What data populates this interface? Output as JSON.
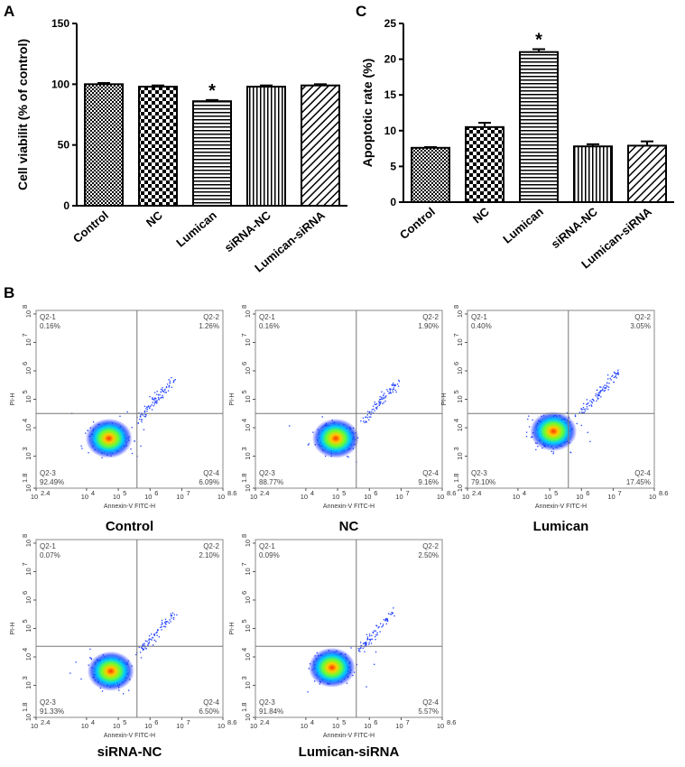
{
  "panels": {
    "a": "A",
    "b": "B",
    "c": "C"
  },
  "chart_data": [
    {
      "id": "A",
      "type": "bar",
      "categories": [
        "Control",
        "NC",
        "Lumican",
        "siRNA-NC",
        "Lumican-siRNA"
      ],
      "values": [
        100,
        98,
        86,
        98,
        99
      ],
      "errors": [
        1,
        1,
        1,
        1,
        1
      ],
      "significant": [
        "",
        "",
        "*",
        "",
        ""
      ],
      "ylabel": "Cell viabilit (% of control)",
      "ylim": [
        0,
        150
      ],
      "yticks": [
        "0",
        "50",
        "100",
        "150"
      ],
      "patterns": [
        "dots",
        "checker",
        "hlines",
        "vlines",
        "diagonal"
      ]
    },
    {
      "id": "C",
      "type": "bar",
      "categories": [
        "Control",
        "NC",
        "Lumican",
        "siRNA-NC",
        "Lumican-siRNA"
      ],
      "values": [
        7.6,
        10.5,
        21.0,
        7.8,
        7.9
      ],
      "errors": [
        0.1,
        0.6,
        0.4,
        0.3,
        0.6
      ],
      "significant": [
        "",
        "",
        "*",
        "",
        ""
      ],
      "ylabel": "Apoptotic rate (%)",
      "ylim": [
        0,
        25
      ],
      "yticks": [
        "0",
        "5",
        "10",
        "15",
        "20",
        "25"
      ],
      "patterns": [
        "dots",
        "checker",
        "hlines",
        "vlines",
        "diagonal"
      ]
    },
    {
      "id": "B",
      "type": "scatter",
      "xlabel": "Annexin-V FITC-H",
      "ylabel": "PI-H",
      "xticks": [
        "10",
        "10",
        "10",
        "10",
        "10",
        "10"
      ],
      "xexp": [
        "2.4",
        "4",
        "5",
        "6",
        "7",
        "8.6"
      ],
      "yticks": [
        "10",
        "10",
        "10",
        "10",
        "10",
        "10",
        "10"
      ],
      "yexp": [
        "1.8",
        "3",
        "4",
        "5",
        "6",
        "7",
        "8"
      ],
      "plots": [
        {
          "title": "Control",
          "q1": "0.16%",
          "q2": "1.26%",
          "q3": "92.49%",
          "q4": "6.09%"
        },
        {
          "title": "NC",
          "q1": "0.16%",
          "q2": "1.90%",
          "q3": "88.77%",
          "q4": "9.16%"
        },
        {
          "title": "Lumican",
          "q1": "0.40%",
          "q2": "3.05%",
          "q3": "79.10%",
          "q4": "17.45%"
        },
        {
          "title": "siRNA-NC",
          "q1": "0.07%",
          "q2": "2.10%",
          "q3": "91.33%",
          "q4": "6.50%"
        },
        {
          "title": "Lumican-siRNA",
          "q1": "0.09%",
          "q2": "2.50%",
          "q3": "91.84%",
          "q4": "5.57%"
        }
      ],
      "quadrant_names": [
        "Q2-1",
        "Q2-2",
        "Q2-3",
        "Q2-4"
      ]
    }
  ]
}
